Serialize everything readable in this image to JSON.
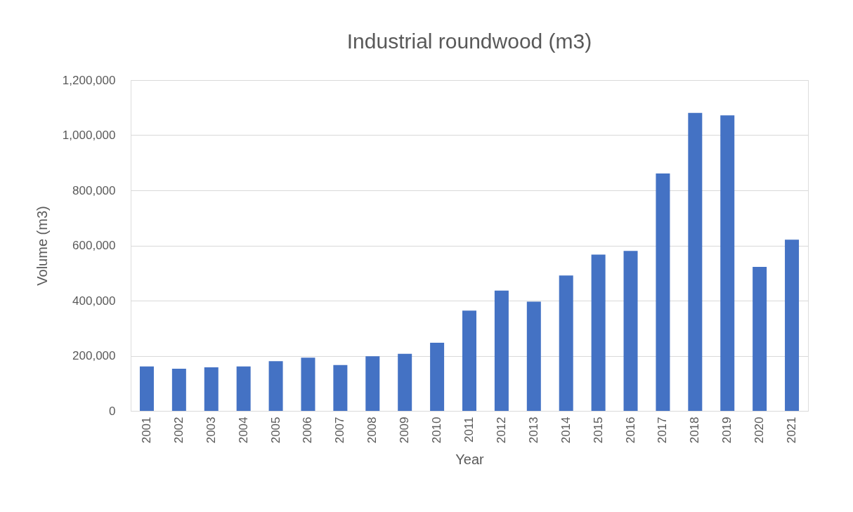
{
  "chart_data": {
    "type": "bar",
    "title": "Industrial roundwood (m3)",
    "xlabel": "Year",
    "ylabel": "Volume (m3)",
    "categories": [
      "2001",
      "2002",
      "2003",
      "2004",
      "2005",
      "2006",
      "2007",
      "2008",
      "2009",
      "2010",
      "2011",
      "2012",
      "2013",
      "2014",
      "2015",
      "2016",
      "2017",
      "2018",
      "2019",
      "2020",
      "2021"
    ],
    "values": [
      161000,
      153000,
      158000,
      161000,
      180000,
      193000,
      166000,
      198000,
      207000,
      247000,
      364000,
      436000,
      396000,
      491000,
      567000,
      580000,
      861000,
      1081000,
      1072000,
      522000,
      621000
    ],
    "color": "#4472c4",
    "ylim": [
      0,
      1200000
    ],
    "yticks": [
      0,
      {
        "value": 200000,
        "label": "200,000"
      },
      {
        "value": 400000,
        "label": "400,000"
      },
      {
        "value": 600000,
        "label": "600,000"
      },
      {
        "value": 800000,
        "label": "800,000"
      },
      {
        "value": 1000000,
        "label": "1,000,000"
      },
      {
        "value": 1200000,
        "label": "1,200,000"
      }
    ],
    "grid": "y"
  }
}
